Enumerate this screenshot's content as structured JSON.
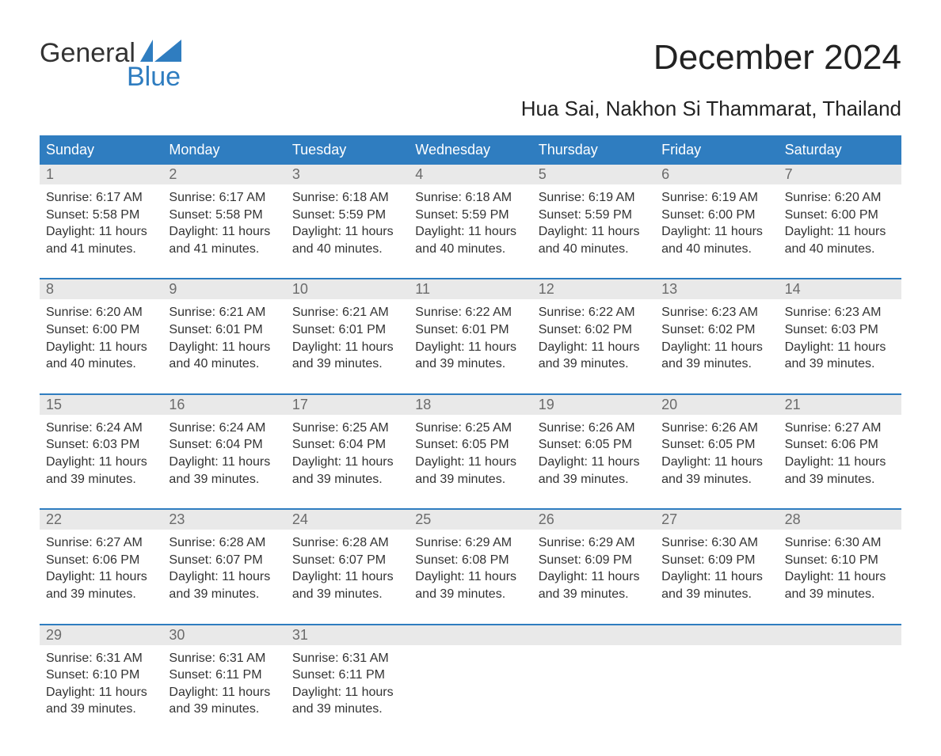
{
  "brand": {
    "word1": "General",
    "word2": "Blue"
  },
  "title": "December 2024",
  "subtitle": "Hua Sai, Nakhon Si Thammarat, Thailand",
  "colors": {
    "accent": "#2f7dc0",
    "header_text": "#ffffff",
    "daynum_bg": "#e9e9e9",
    "daynum_text": "#6b6b6b",
    "body_text": "#333333",
    "page_bg": "#ffffff"
  },
  "day_headers": [
    "Sunday",
    "Monday",
    "Tuesday",
    "Wednesday",
    "Thursday",
    "Friday",
    "Saturday"
  ],
  "weeks": [
    [
      {
        "n": "1",
        "sunrise": "Sunrise: 6:17 AM",
        "sunset": "Sunset: 5:58 PM",
        "d1": "Daylight: 11 hours",
        "d2": "and 41 minutes."
      },
      {
        "n": "2",
        "sunrise": "Sunrise: 6:17 AM",
        "sunset": "Sunset: 5:58 PM",
        "d1": "Daylight: 11 hours",
        "d2": "and 41 minutes."
      },
      {
        "n": "3",
        "sunrise": "Sunrise: 6:18 AM",
        "sunset": "Sunset: 5:59 PM",
        "d1": "Daylight: 11 hours",
        "d2": "and 40 minutes."
      },
      {
        "n": "4",
        "sunrise": "Sunrise: 6:18 AM",
        "sunset": "Sunset: 5:59 PM",
        "d1": "Daylight: 11 hours",
        "d2": "and 40 minutes."
      },
      {
        "n": "5",
        "sunrise": "Sunrise: 6:19 AM",
        "sunset": "Sunset: 5:59 PM",
        "d1": "Daylight: 11 hours",
        "d2": "and 40 minutes."
      },
      {
        "n": "6",
        "sunrise": "Sunrise: 6:19 AM",
        "sunset": "Sunset: 6:00 PM",
        "d1": "Daylight: 11 hours",
        "d2": "and 40 minutes."
      },
      {
        "n": "7",
        "sunrise": "Sunrise: 6:20 AM",
        "sunset": "Sunset: 6:00 PM",
        "d1": "Daylight: 11 hours",
        "d2": "and 40 minutes."
      }
    ],
    [
      {
        "n": "8",
        "sunrise": "Sunrise: 6:20 AM",
        "sunset": "Sunset: 6:00 PM",
        "d1": "Daylight: 11 hours",
        "d2": "and 40 minutes."
      },
      {
        "n": "9",
        "sunrise": "Sunrise: 6:21 AM",
        "sunset": "Sunset: 6:01 PM",
        "d1": "Daylight: 11 hours",
        "d2": "and 40 minutes."
      },
      {
        "n": "10",
        "sunrise": "Sunrise: 6:21 AM",
        "sunset": "Sunset: 6:01 PM",
        "d1": "Daylight: 11 hours",
        "d2": "and 39 minutes."
      },
      {
        "n": "11",
        "sunrise": "Sunrise: 6:22 AM",
        "sunset": "Sunset: 6:01 PM",
        "d1": "Daylight: 11 hours",
        "d2": "and 39 minutes."
      },
      {
        "n": "12",
        "sunrise": "Sunrise: 6:22 AM",
        "sunset": "Sunset: 6:02 PM",
        "d1": "Daylight: 11 hours",
        "d2": "and 39 minutes."
      },
      {
        "n": "13",
        "sunrise": "Sunrise: 6:23 AM",
        "sunset": "Sunset: 6:02 PM",
        "d1": "Daylight: 11 hours",
        "d2": "and 39 minutes."
      },
      {
        "n": "14",
        "sunrise": "Sunrise: 6:23 AM",
        "sunset": "Sunset: 6:03 PM",
        "d1": "Daylight: 11 hours",
        "d2": "and 39 minutes."
      }
    ],
    [
      {
        "n": "15",
        "sunrise": "Sunrise: 6:24 AM",
        "sunset": "Sunset: 6:03 PM",
        "d1": "Daylight: 11 hours",
        "d2": "and 39 minutes."
      },
      {
        "n": "16",
        "sunrise": "Sunrise: 6:24 AM",
        "sunset": "Sunset: 6:04 PM",
        "d1": "Daylight: 11 hours",
        "d2": "and 39 minutes."
      },
      {
        "n": "17",
        "sunrise": "Sunrise: 6:25 AM",
        "sunset": "Sunset: 6:04 PM",
        "d1": "Daylight: 11 hours",
        "d2": "and 39 minutes."
      },
      {
        "n": "18",
        "sunrise": "Sunrise: 6:25 AM",
        "sunset": "Sunset: 6:05 PM",
        "d1": "Daylight: 11 hours",
        "d2": "and 39 minutes."
      },
      {
        "n": "19",
        "sunrise": "Sunrise: 6:26 AM",
        "sunset": "Sunset: 6:05 PM",
        "d1": "Daylight: 11 hours",
        "d2": "and 39 minutes."
      },
      {
        "n": "20",
        "sunrise": "Sunrise: 6:26 AM",
        "sunset": "Sunset: 6:05 PM",
        "d1": "Daylight: 11 hours",
        "d2": "and 39 minutes."
      },
      {
        "n": "21",
        "sunrise": "Sunrise: 6:27 AM",
        "sunset": "Sunset: 6:06 PM",
        "d1": "Daylight: 11 hours",
        "d2": "and 39 minutes."
      }
    ],
    [
      {
        "n": "22",
        "sunrise": "Sunrise: 6:27 AM",
        "sunset": "Sunset: 6:06 PM",
        "d1": "Daylight: 11 hours",
        "d2": "and 39 minutes."
      },
      {
        "n": "23",
        "sunrise": "Sunrise: 6:28 AM",
        "sunset": "Sunset: 6:07 PM",
        "d1": "Daylight: 11 hours",
        "d2": "and 39 minutes."
      },
      {
        "n": "24",
        "sunrise": "Sunrise: 6:28 AM",
        "sunset": "Sunset: 6:07 PM",
        "d1": "Daylight: 11 hours",
        "d2": "and 39 minutes."
      },
      {
        "n": "25",
        "sunrise": "Sunrise: 6:29 AM",
        "sunset": "Sunset: 6:08 PM",
        "d1": "Daylight: 11 hours",
        "d2": "and 39 minutes."
      },
      {
        "n": "26",
        "sunrise": "Sunrise: 6:29 AM",
        "sunset": "Sunset: 6:09 PM",
        "d1": "Daylight: 11 hours",
        "d2": "and 39 minutes."
      },
      {
        "n": "27",
        "sunrise": "Sunrise: 6:30 AM",
        "sunset": "Sunset: 6:09 PM",
        "d1": "Daylight: 11 hours",
        "d2": "and 39 minutes."
      },
      {
        "n": "28",
        "sunrise": "Sunrise: 6:30 AM",
        "sunset": "Sunset: 6:10 PM",
        "d1": "Daylight: 11 hours",
        "d2": "and 39 minutes."
      }
    ],
    [
      {
        "n": "29",
        "sunrise": "Sunrise: 6:31 AM",
        "sunset": "Sunset: 6:10 PM",
        "d1": "Daylight: 11 hours",
        "d2": "and 39 minutes."
      },
      {
        "n": "30",
        "sunrise": "Sunrise: 6:31 AM",
        "sunset": "Sunset: 6:11 PM",
        "d1": "Daylight: 11 hours",
        "d2": "and 39 minutes."
      },
      {
        "n": "31",
        "sunrise": "Sunrise: 6:31 AM",
        "sunset": "Sunset: 6:11 PM",
        "d1": "Daylight: 11 hours",
        "d2": "and 39 minutes."
      },
      null,
      null,
      null,
      null
    ]
  ]
}
